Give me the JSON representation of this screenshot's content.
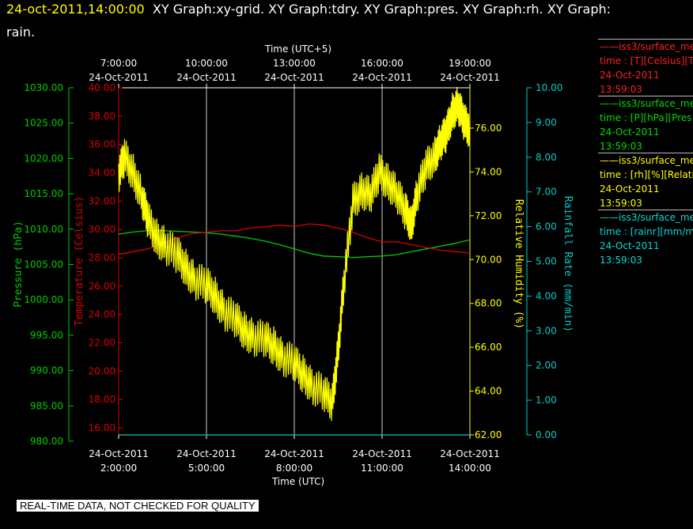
{
  "header": {
    "datetime": "24-oct-2011,14:00:00",
    "graphs_line1": "XY Graph:xy-grid.  XY Graph:tdry.  XY Graph:pres.  XY Graph:rh.  XY Graph:",
    "graphs_line2": "rain."
  },
  "colors": {
    "pressure": "#00cc00",
    "temperature": "#dd0000",
    "humidity": "#ffff00",
    "rain": "#00cccc",
    "grid": "#ffffff",
    "background": "#000000"
  },
  "axes": {
    "top_title": "Time (UTC+5)",
    "top_ticks": [
      {
        "time": "7:00:00",
        "date": "24-Oct-2011"
      },
      {
        "time": "10:00:00",
        "date": "24-Oct-2011"
      },
      {
        "time": "13:00:00",
        "date": "24-Oct-2011"
      },
      {
        "time": "16:00:00",
        "date": "24-Oct-2011"
      },
      {
        "time": "19:00:00",
        "date": "24-Oct-2011"
      }
    ],
    "bottom_title": "Time (UTC)",
    "bottom_ticks": [
      {
        "date": "24-Oct-2011",
        "time": "2:00:00"
      },
      {
        "date": "24-Oct-2011",
        "time": "5:00:00"
      },
      {
        "date": "24-Oct-2011",
        "time": "8:00:00"
      },
      {
        "date": "24-Oct-2011",
        "time": "11:00:00"
      },
      {
        "date": "24-Oct-2011",
        "time": "14:00:00"
      }
    ],
    "pressure_label": "Pressure (hPa)",
    "pressure_ticks": [
      "1030.00",
      "1025.00",
      "1020.00",
      "1015.00",
      "1010.00",
      "1005.00",
      "1000.00",
      "995.00",
      "990.00",
      "985.00",
      "980.00"
    ],
    "temperature_label": "Temperature (Celsius)",
    "temperature_ticks": [
      "40.00",
      "38.00",
      "36.00",
      "34.00",
      "32.00",
      "30.00",
      "28.00",
      "26.00",
      "24.00",
      "22.00",
      "20.00",
      "18.00",
      "16.00"
    ],
    "humidity_label": "Relative Humidity (%)",
    "humidity_ticks": [
      "76.00",
      "74.00",
      "72.00",
      "70.00",
      "68.00",
      "66.00",
      "64.00",
      "62.00"
    ],
    "rain_label": "Rainfall Rate (mm/min)",
    "rain_ticks": [
      "10.00",
      "9.00",
      "8.00",
      "7.00",
      "6.00",
      "5.00",
      "4.00",
      "3.00",
      "2.00",
      "1.00",
      "0.00"
    ]
  },
  "legend": [
    {
      "line1": "——iss3/surface_me",
      "line2": "time : [T][Celsius][T",
      "line3": "24-Oct-2011",
      "line4": "13:59:03",
      "color": "#ff2020"
    },
    {
      "line1": "——iss3/surface_me",
      "line2": "time : [P][hPa][Pres",
      "line3": "24-Oct-2011",
      "line4": "13:59:03",
      "color": "#00dd00"
    },
    {
      "line1": "——iss3/surface_me",
      "line2": "time : [rh][%][Relati",
      "line3": "24-Oct-2011",
      "line4": "13:59:03",
      "color": "#ffff00"
    },
    {
      "line1": "——iss3/surface_me",
      "line2": "time : [rainr][mm/mi",
      "line3": "24-Oct-2011",
      "line4": "13:59:03",
      "color": "#00dddd"
    }
  ],
  "notice": "REAL-TIME DATA, NOT CHECKED FOR QUALITY",
  "chart_data": {
    "type": "line",
    "x_unit": "hours UTC, 24-Oct-2011",
    "x_range": [
      2.0,
      14.0
    ],
    "grid": true,
    "series": [
      {
        "name": "Pressure (hPa)",
        "axis": "pressure",
        "ylim": [
          980,
          1030
        ],
        "x": [
          2.0,
          2.5,
          3.0,
          3.5,
          4.0,
          4.5,
          5.0,
          5.5,
          6.0,
          6.5,
          7.0,
          7.5,
          8.0,
          8.5,
          9.0,
          9.5,
          10.0,
          10.5,
          11.0,
          11.5,
          12.0,
          12.5,
          13.0,
          13.5,
          14.0
        ],
        "values": [
          1009.3,
          1009.6,
          1009.8,
          1009.8,
          1009.7,
          1009.6,
          1009.5,
          1009.3,
          1009.0,
          1008.7,
          1008.3,
          1007.8,
          1007.2,
          1006.6,
          1006.2,
          1006.1,
          1006.0,
          1006.1,
          1006.2,
          1006.4,
          1006.8,
          1007.2,
          1007.6,
          1008.0,
          1008.5
        ]
      },
      {
        "name": "Temperature (Celsius)",
        "axis": "temperature",
        "ylim": [
          15,
          40
        ],
        "x": [
          2.0,
          2.5,
          3.0,
          3.5,
          4.0,
          4.5,
          5.0,
          5.5,
          6.0,
          6.5,
          7.0,
          7.5,
          8.0,
          8.5,
          9.0,
          9.5,
          10.0,
          10.5,
          11.0,
          11.5,
          12.0,
          12.5,
          13.0,
          13.5,
          14.0
        ],
        "values": [
          28.0,
          28.2,
          28.4,
          28.8,
          29.2,
          29.5,
          29.6,
          29.7,
          29.7,
          29.9,
          30.0,
          30.1,
          30.0,
          30.2,
          30.1,
          29.9,
          29.6,
          29.2,
          28.9,
          28.9,
          28.7,
          28.5,
          28.3,
          28.2,
          28.1
        ]
      },
      {
        "name": "Relative Humidity (%)",
        "axis": "humidity",
        "ylim": [
          61.5,
          77.5
        ],
        "x": [
          2.0,
          2.2,
          2.5,
          2.8,
          3.0,
          3.3,
          3.6,
          4.0,
          4.3,
          4.6,
          5.0,
          5.3,
          5.6,
          6.0,
          6.3,
          6.6,
          7.0,
          7.3,
          7.6,
          8.0,
          8.3,
          8.6,
          9.0,
          9.3,
          9.5,
          9.7,
          10.0,
          10.3,
          10.6,
          10.9,
          11.2,
          11.5,
          11.8,
          12.0,
          12.2,
          12.5,
          12.8,
          13.0,
          13.2,
          13.4,
          13.6,
          13.8,
          14.0
        ],
        "values": [
          73.5,
          74.3,
          73.6,
          72.4,
          71.4,
          70.6,
          70.2,
          69.8,
          69.2,
          68.6,
          68.4,
          67.9,
          67.2,
          66.8,
          66.3,
          66.0,
          65.9,
          65.6,
          65.1,
          64.8,
          64.3,
          63.8,
          63.4,
          63.0,
          65.5,
          68.5,
          72.2,
          72.8,
          72.5,
          73.6,
          73.2,
          72.6,
          71.8,
          71.2,
          72.6,
          73.8,
          74.4,
          75.0,
          75.4,
          76.4,
          76.7,
          75.9,
          75.6
        ]
      },
      {
        "name": "Rainfall Rate (mm/min)",
        "axis": "rain",
        "ylim": [
          0,
          10
        ],
        "x": [
          2.0,
          14.0
        ],
        "values": [
          0.0,
          0.0
        ]
      }
    ]
  }
}
